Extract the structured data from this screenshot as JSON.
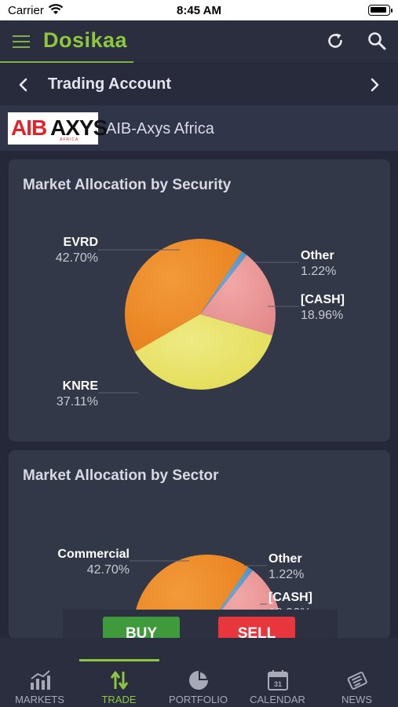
{
  "status_bar": {
    "carrier": "Carrier",
    "time": "8:45 AM"
  },
  "header": {
    "brand": "Dosikaa"
  },
  "account": {
    "title": "Trading Account"
  },
  "broker": {
    "logo_text": "AIBAXYS AFRICA",
    "name": "AIB-Axys Africa"
  },
  "colors": {
    "accent": "#8dc63f",
    "buy": "#3e9a3a",
    "sell": "#e8363d",
    "slice_evrd": "#e8801c",
    "slice_other": "#4a90c8",
    "slice_cash": "#e38a8a",
    "slice_knre": "#e3dc55"
  },
  "chart_data": [
    {
      "type": "pie",
      "title": "Market Allocation by Security",
      "slices": [
        {
          "label": "EVRD",
          "value": 42.7,
          "display": "42.70%"
        },
        {
          "label": "Other",
          "value": 1.22,
          "display": "1.22%"
        },
        {
          "label": "[CASH]",
          "value": 18.96,
          "display": "18.96%"
        },
        {
          "label": "KNRE",
          "value": 37.11,
          "display": "37.11%"
        }
      ]
    },
    {
      "type": "pie",
      "title": "Market Allocation by Sector",
      "slices": [
        {
          "label": "Commercial",
          "value": 42.7,
          "display": "42.70%"
        },
        {
          "label": "Other",
          "value": 1.22,
          "display": "1.22%"
        },
        {
          "label": "[CASH]",
          "value": 18.96,
          "display": "18.96%"
        },
        {
          "label": "",
          "value": 37.11,
          "display": ""
        }
      ]
    }
  ],
  "actions": {
    "buy_label": "BUY",
    "sell_label": "SELL"
  },
  "nav": {
    "items": [
      {
        "label": "MARKETS",
        "icon": "chart-icon"
      },
      {
        "label": "TRADE",
        "icon": "trade-arrows-icon"
      },
      {
        "label": "PORTFOLIO",
        "icon": "pie-icon"
      },
      {
        "label": "CALENDAR",
        "icon": "calendar-icon",
        "icon_text": "31"
      },
      {
        "label": "NEWS",
        "icon": "news-icon"
      }
    ],
    "active": "TRADE"
  }
}
